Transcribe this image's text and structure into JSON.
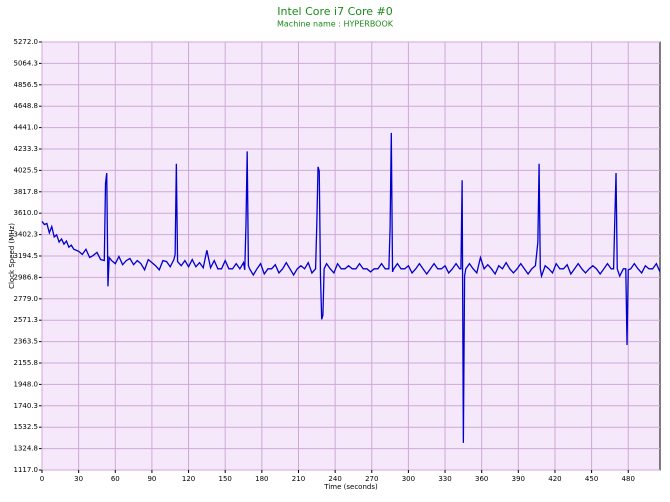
{
  "chart_data": {
    "type": "line",
    "title": "Intel Core i7 Core #0",
    "subtitle": "Machine name : HYPERBOOK",
    "x_label": "Time (seconds)",
    "y_label": "Clock Speed (MHz)",
    "xlim": [
      0,
      506
    ],
    "xticks": [
      0,
      30,
      60,
      90,
      120,
      150,
      180,
      210,
      240,
      270,
      300,
      330,
      360,
      390,
      420,
      450,
      480
    ],
    "ylim": [
      1117,
      5272
    ],
    "yticks": [
      {
        "value": 1117,
        "label": "1117.0"
      },
      1324.8,
      1532.5,
      1740.3,
      {
        "value": 1948,
        "label": "1948.0"
      },
      2155.8,
      2363.5,
      2571.3,
      {
        "value": 2779,
        "label": "2779.0"
      },
      2986.8,
      3194.5,
      3402.3,
      {
        "value": 3610,
        "label": "3610.0"
      },
      3817.8,
      4025.5,
      4233.3,
      {
        "value": 4441,
        "label": "4441.0"
      },
      4648.8,
      4856.5,
      5064.3,
      {
        "value": 5272,
        "label": "5272.0"
      }
    ],
    "grid": true,
    "grid_color": "#cfa8d8",
    "background": "#f6e8fb",
    "x": [
      0,
      2,
      4,
      6,
      8,
      10,
      12,
      14,
      16,
      18,
      20,
      22,
      24,
      26,
      28,
      30,
      33,
      36,
      39,
      42,
      45,
      48,
      51,
      52,
      53,
      54,
      55,
      57,
      60,
      63,
      66,
      69,
      72,
      75,
      78,
      81,
      84,
      87,
      90,
      93,
      96,
      99,
      102,
      105,
      108,
      109,
      110,
      111,
      114,
      117,
      120,
      123,
      126,
      129,
      132,
      135,
      138,
      141,
      144,
      147,
      150,
      153,
      156,
      159,
      162,
      165,
      166,
      167,
      168,
      169,
      170,
      173,
      176,
      179,
      182,
      185,
      188,
      191,
      194,
      197,
      200,
      203,
      206,
      209,
      212,
      215,
      218,
      221,
      224,
      225,
      226,
      227,
      228,
      229,
      230,
      231,
      233,
      236,
      239,
      242,
      245,
      248,
      251,
      254,
      257,
      260,
      263,
      266,
      269,
      272,
      275,
      278,
      281,
      284,
      285,
      286,
      287,
      288,
      291,
      294,
      297,
      300,
      303,
      306,
      309,
      312,
      315,
      318,
      321,
      324,
      327,
      330,
      333,
      336,
      339,
      342,
      343,
      344,
      345,
      346,
      347,
      350,
      353,
      356,
      359,
      362,
      365,
      368,
      371,
      374,
      377,
      380,
      383,
      386,
      389,
      392,
      395,
      398,
      401,
      404,
      406,
      407,
      408,
      409,
      412,
      415,
      418,
      421,
      424,
      427,
      430,
      433,
      436,
      439,
      442,
      445,
      448,
      451,
      454,
      457,
      460,
      463,
      466,
      468,
      469,
      470,
      471,
      473,
      476,
      478,
      479,
      480,
      482,
      485,
      488,
      491,
      494,
      497,
      500,
      503,
      506
    ],
    "series": [
      {
        "name": "Clock Speed",
        "color": "#0000cc",
        "values": [
          3530,
          3500,
          3510,
          3420,
          3480,
          3380,
          3400,
          3330,
          3360,
          3310,
          3340,
          3280,
          3300,
          3260,
          3250,
          3240,
          3210,
          3260,
          3180,
          3200,
          3230,
          3160,
          3150,
          3900,
          4000,
          2900,
          3180,
          3150,
          3120,
          3190,
          3110,
          3150,
          3170,
          3110,
          3150,
          3120,
          3060,
          3160,
          3130,
          3100,
          3060,
          3150,
          3140,
          3090,
          3160,
          3210,
          4090,
          3140,
          3100,
          3150,
          3090,
          3160,
          3090,
          3130,
          3080,
          3250,
          3080,
          3150,
          3070,
          3070,
          3150,
          3070,
          3070,
          3120,
          3070,
          3130,
          3060,
          3490,
          4210,
          3100,
          3070,
          3010,
          3070,
          3120,
          3020,
          3070,
          3070,
          3110,
          3030,
          3070,
          3130,
          3070,
          3010,
          3070,
          3100,
          3070,
          3130,
          3030,
          3070,
          3500,
          4060,
          4020,
          3000,
          2580,
          2620,
          3070,
          3120,
          3070,
          3030,
          3120,
          3070,
          3070,
          3100,
          3070,
          3070,
          3120,
          3070,
          3070,
          3040,
          3070,
          3070,
          3120,
          3070,
          3070,
          3460,
          4390,
          3040,
          3070,
          3120,
          3070,
          3070,
          3100,
          3030,
          3070,
          3120,
          3070,
          3020,
          3070,
          3120,
          3070,
          3070,
          3100,
          3030,
          3070,
          3120,
          3070,
          3070,
          3930,
          1380,
          3000,
          3070,
          3120,
          3070,
          3030,
          3180,
          3070,
          3110,
          3070,
          3020,
          3100,
          3070,
          3130,
          3070,
          3030,
          3070,
          3120,
          3070,
          3020,
          3070,
          3100,
          3330,
          4090,
          3070,
          3000,
          3100,
          3070,
          3030,
          3120,
          3070,
          3070,
          3110,
          3020,
          3070,
          3120,
          3070,
          3030,
          3070,
          3100,
          3070,
          3020,
          3070,
          3120,
          3070,
          3070,
          3550,
          4000,
          3070,
          3000,
          3070,
          3070,
          2330,
          3060,
          3070,
          3120,
          3070,
          3030,
          3100,
          3070,
          3070,
          3120,
          3040
        ]
      }
    ]
  }
}
